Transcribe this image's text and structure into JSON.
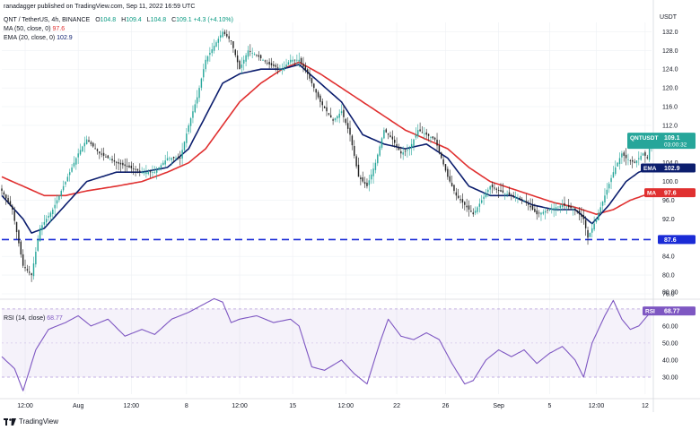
{
  "header": {
    "publisher": "ranadagger published on TradingView.com, Sep 11, 2022 16:59 UTC",
    "symbol": "QNT / TetherUS, 4h, BINANCE",
    "o_label": "O",
    "o_value": "104.8",
    "h_label": "H",
    "h_value": "109.4",
    "l_label": "L",
    "l_value": "104.8",
    "c_label": "C",
    "c_value": "109.1",
    "change": "+4.3 (+4.10%)",
    "ma_label": "MA (50, close, 0)",
    "ma_value": "97.6",
    "ema_label": "EMA (20, close, 0)",
    "ema_value": "102.9",
    "rsi_label": "RSI (14, close)",
    "rsi_value": "68.77",
    "currency": "USDT"
  },
  "footer": {
    "logo_text": "TradingView"
  },
  "colors": {
    "up": "#26a69a",
    "down": "#222222",
    "ema": "#0c1e6e",
    "ma": "#e03030",
    "rsi": "#7e57c2",
    "support": "#1a2bd6",
    "price_tag": "#26a69a"
  },
  "chart_data": [
    {
      "type": "candlestick",
      "title": "QNT / TetherUS, 4h, BINANCE",
      "x_ticks": [
        "12:00",
        "Aug",
        "12:00",
        "8",
        "12:00",
        "15",
        "12:00",
        "22",
        "26",
        "Sep",
        "5",
        "12:00",
        "12"
      ],
      "y_ticks": [
        "132.0",
        "128.0",
        "124.0",
        "120.0",
        "116.0",
        "112.0",
        "104.0",
        "100.0",
        "96.0",
        "92.0",
        "84.0",
        "80.0",
        "76.0"
      ],
      "ylim": [
        76,
        134
      ],
      "axis_tags": [
        {
          "label": "QNTUSDT",
          "value": "109.1",
          "sub": "03:00:32",
          "y": 109.1
        },
        {
          "label": "EMA",
          "value": "102.9",
          "y": 102.9
        },
        {
          "label": "MA",
          "value": "97.6",
          "y": 97.6
        },
        {
          "label": "",
          "value": "87.6",
          "y": 87.6
        }
      ],
      "support_level": 87.6,
      "anchors": [
        [
          0,
          98
        ],
        [
          5,
          94
        ],
        [
          10,
          82
        ],
        [
          14,
          80
        ],
        [
          18,
          90
        ],
        [
          24,
          94
        ],
        [
          30,
          100
        ],
        [
          36,
          106
        ],
        [
          40,
          109
        ],
        [
          46,
          106
        ],
        [
          54,
          104
        ],
        [
          60,
          103
        ],
        [
          66,
          102
        ],
        [
          72,
          102
        ],
        [
          78,
          105
        ],
        [
          84,
          105
        ],
        [
          88,
          112
        ],
        [
          92,
          118
        ],
        [
          96,
          126
        ],
        [
          100,
          129
        ],
        [
          104,
          132
        ],
        [
          108,
          130
        ],
        [
          112,
          124
        ],
        [
          116,
          128
        ],
        [
          120,
          127
        ],
        [
          126,
          125
        ],
        [
          132,
          124
        ],
        [
          136,
          126
        ],
        [
          140,
          126
        ],
        [
          144,
          123
        ],
        [
          150,
          117
        ],
        [
          156,
          113
        ],
        [
          160,
          115
        ],
        [
          164,
          110
        ],
        [
          168,
          101
        ],
        [
          172,
          99
        ],
        [
          176,
          104
        ],
        [
          180,
          111
        ],
        [
          184,
          109
        ],
        [
          188,
          106
        ],
        [
          192,
          107
        ],
        [
          196,
          111
        ],
        [
          200,
          110
        ],
        [
          204,
          109
        ],
        [
          210,
          101
        ],
        [
          214,
          97
        ],
        [
          218,
          95
        ],
        [
          222,
          93
        ],
        [
          226,
          96
        ],
        [
          230,
          99
        ],
        [
          234,
          98
        ],
        [
          240,
          97
        ],
        [
          246,
          96
        ],
        [
          252,
          93
        ],
        [
          258,
          94
        ],
        [
          264,
          95
        ],
        [
          270,
          94
        ],
        [
          274,
          92
        ],
        [
          276,
          88
        ],
        [
          280,
          92
        ],
        [
          284,
          97
        ],
        [
          288,
          102
        ],
        [
          292,
          106
        ],
        [
          294,
          105
        ],
        [
          298,
          104
        ],
        [
          302,
          106
        ],
        [
          304,
          105
        ],
        [
          306,
          109.1
        ]
      ],
      "ema20_anchors": [
        [
          0,
          97
        ],
        [
          10,
          92
        ],
        [
          14,
          89
        ],
        [
          20,
          90
        ],
        [
          30,
          95
        ],
        [
          40,
          100
        ],
        [
          54,
          102
        ],
        [
          66,
          102
        ],
        [
          78,
          103
        ],
        [
          88,
          107
        ],
        [
          96,
          114
        ],
        [
          104,
          121
        ],
        [
          112,
          123
        ],
        [
          122,
          124
        ],
        [
          132,
          124
        ],
        [
          140,
          125
        ],
        [
          150,
          121
        ],
        [
          160,
          117
        ],
        [
          170,
          110
        ],
        [
          180,
          108
        ],
        [
          190,
          107
        ],
        [
          200,
          108
        ],
        [
          210,
          105
        ],
        [
          220,
          99
        ],
        [
          230,
          97
        ],
        [
          240,
          97
        ],
        [
          250,
          95
        ],
        [
          260,
          94
        ],
        [
          270,
          94
        ],
        [
          278,
          91
        ],
        [
          286,
          95
        ],
        [
          294,
          100
        ],
        [
          300,
          102
        ],
        [
          306,
          102.9
        ]
      ],
      "ma50_anchors": [
        [
          0,
          101
        ],
        [
          10,
          99
        ],
        [
          20,
          97
        ],
        [
          30,
          97
        ],
        [
          40,
          98
        ],
        [
          54,
          99
        ],
        [
          66,
          100
        ],
        [
          78,
          102
        ],
        [
          88,
          104
        ],
        [
          96,
          107
        ],
        [
          104,
          112
        ],
        [
          112,
          117
        ],
        [
          122,
          121
        ],
        [
          132,
          124
        ],
        [
          140,
          125.5
        ],
        [
          150,
          123
        ],
        [
          160,
          120
        ],
        [
          170,
          117
        ],
        [
          180,
          114
        ],
        [
          190,
          111
        ],
        [
          200,
          109
        ],
        [
          210,
          107
        ],
        [
          220,
          103
        ],
        [
          230,
          100
        ],
        [
          240,
          98.5
        ],
        [
          250,
          97
        ],
        [
          260,
          95.5
        ],
        [
          270,
          94.5
        ],
        [
          280,
          93
        ],
        [
          288,
          94
        ],
        [
          296,
          96
        ],
        [
          306,
          97.6
        ]
      ]
    },
    {
      "type": "line",
      "title": "RSI (14, close)",
      "y_ticks": [
        "80.00",
        "60.00",
        "50.00",
        "40.00",
        "30.00"
      ],
      "ylim": [
        20,
        82
      ],
      "bands": [
        30,
        70
      ],
      "midline": 50,
      "current_value": 68.77,
      "tag": {
        "label": "RSI",
        "value": "68.77"
      },
      "anchors": [
        [
          0,
          42
        ],
        [
          6,
          35
        ],
        [
          10,
          22
        ],
        [
          16,
          46
        ],
        [
          22,
          58
        ],
        [
          30,
          62
        ],
        [
          36,
          66
        ],
        [
          42,
          60
        ],
        [
          50,
          64
        ],
        [
          58,
          54
        ],
        [
          66,
          58
        ],
        [
          72,
          55
        ],
        [
          80,
          64
        ],
        [
          88,
          68
        ],
        [
          94,
          72
        ],
        [
          100,
          76
        ],
        [
          104,
          74
        ],
        [
          108,
          62
        ],
        [
          112,
          64
        ],
        [
          120,
          66
        ],
        [
          128,
          62
        ],
        [
          136,
          64
        ],
        [
          140,
          60
        ],
        [
          146,
          36
        ],
        [
          152,
          34
        ],
        [
          160,
          40
        ],
        [
          166,
          32
        ],
        [
          172,
          26
        ],
        [
          178,
          50
        ],
        [
          182,
          64
        ],
        [
          188,
          54
        ],
        [
          194,
          52
        ],
        [
          200,
          56
        ],
        [
          206,
          52
        ],
        [
          212,
          38
        ],
        [
          218,
          26
        ],
        [
          222,
          28
        ],
        [
          228,
          40
        ],
        [
          234,
          46
        ],
        [
          240,
          42
        ],
        [
          246,
          46
        ],
        [
          252,
          38
        ],
        [
          258,
          44
        ],
        [
          264,
          48
        ],
        [
          270,
          40
        ],
        [
          274,
          30
        ],
        [
          278,
          50
        ],
        [
          284,
          66
        ],
        [
          288,
          75
        ],
        [
          292,
          64
        ],
        [
          296,
          58
        ],
        [
          300,
          60
        ],
        [
          306,
          68.77
        ]
      ]
    }
  ]
}
